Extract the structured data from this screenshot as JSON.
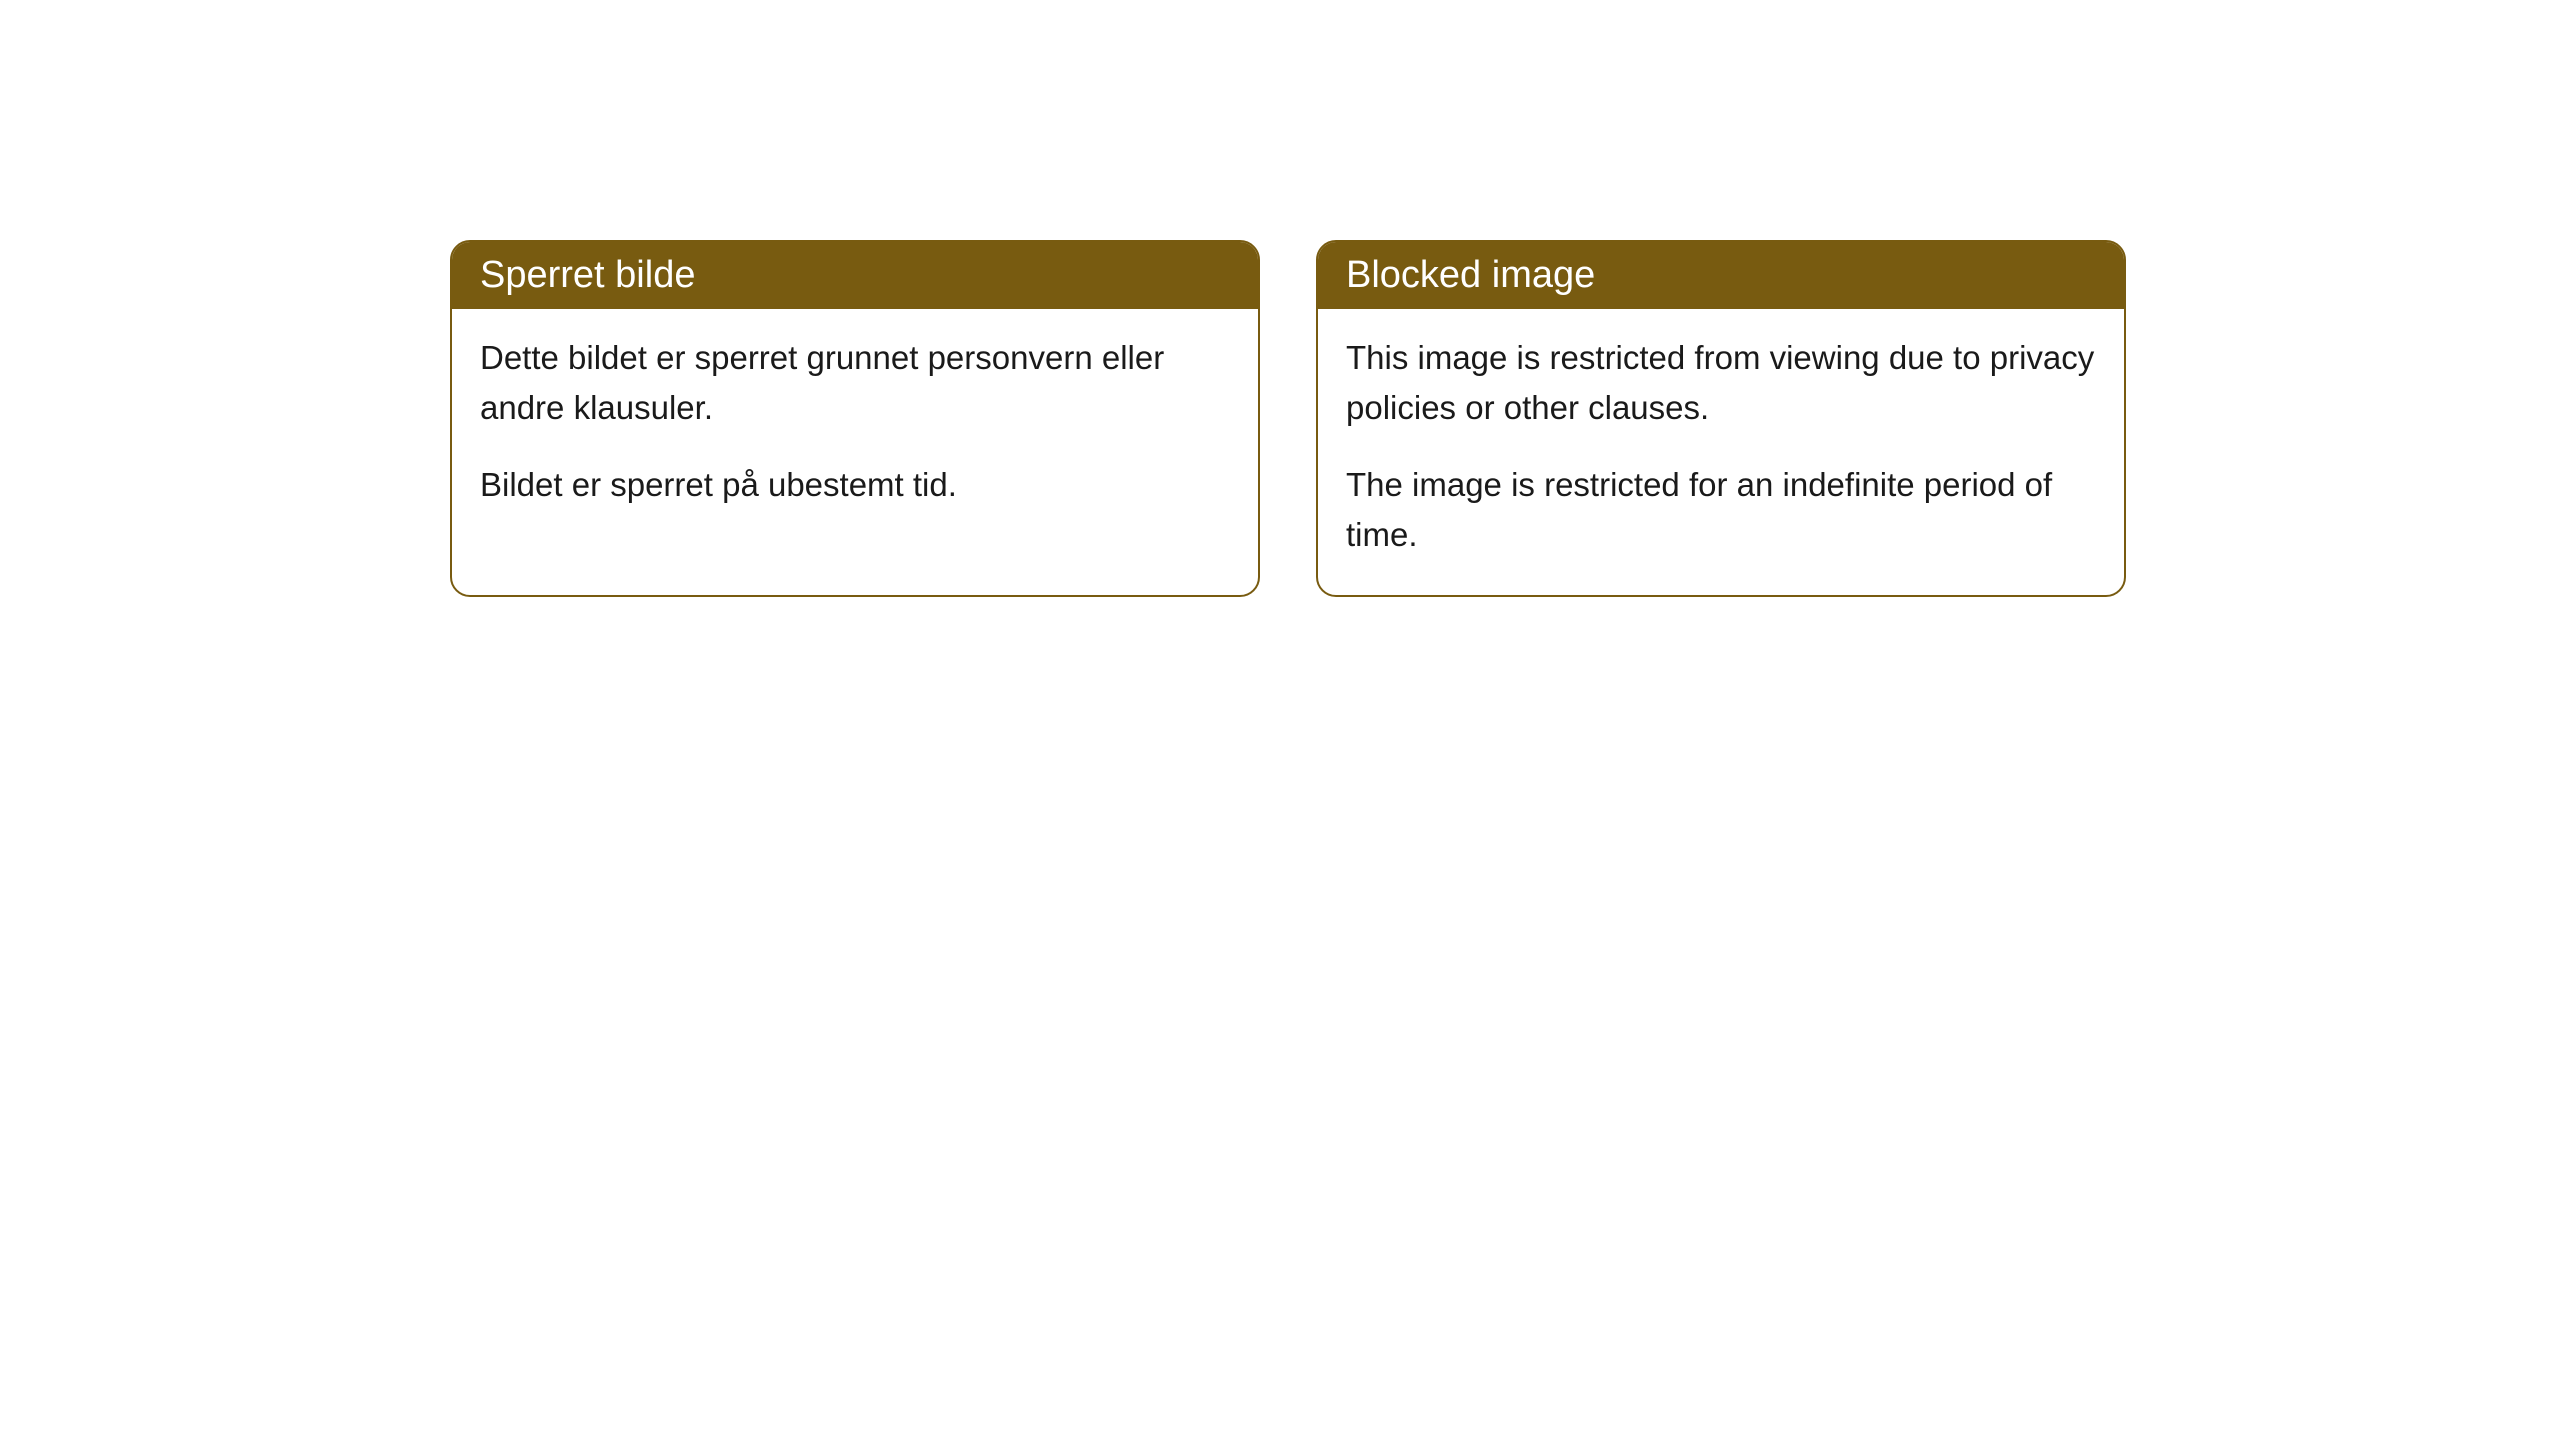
{
  "cards": [
    {
      "title": "Sperret bilde",
      "paragraph1": "Dette bildet er sperret grunnet personvern eller andre klausuler.",
      "paragraph2": "Bildet er sperret på ubestemt tid."
    },
    {
      "title": "Blocked image",
      "paragraph1": "This image is restricted from viewing due to privacy policies or other clauses.",
      "paragraph2": "The image is restricted for an indefinite period of time."
    }
  ],
  "styling": {
    "header_background": "#785b10",
    "header_text_color": "#ffffff",
    "border_color": "#785b10",
    "body_background": "#ffffff",
    "body_text_color": "#1a1a1a",
    "border_radius": 20,
    "header_fontsize": 38,
    "body_fontsize": 33
  }
}
